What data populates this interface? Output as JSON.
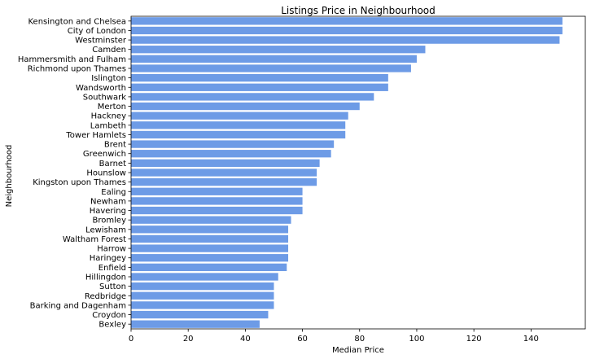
{
  "chart_data": {
    "type": "bar",
    "orientation": "horizontal",
    "title": "Listings Price in Neighbourhood",
    "xlabel": "Median Price",
    "ylabel": "Neighbourhood",
    "xlim": [
      0,
      159
    ],
    "xticks": [
      0,
      20,
      40,
      60,
      80,
      100,
      120,
      140
    ],
    "grid": false,
    "bar_color": "#6d9be6",
    "categories": [
      "Kensington and Chelsea",
      "City of London",
      "Westminster",
      "Camden",
      "Hammersmith and Fulham",
      "Richmond upon Thames",
      "Islington",
      "Wandsworth",
      "Southwark",
      "Merton",
      "Hackney",
      "Lambeth",
      "Tower Hamlets",
      "Brent",
      "Greenwich",
      "Barnet",
      "Hounslow",
      "Kingston upon Thames",
      "Ealing",
      "Newham",
      "Havering",
      "Bromley",
      "Lewisham",
      "Waltham Forest",
      "Harrow",
      "Haringey",
      "Enfield",
      "Hillingdon",
      "Sutton",
      "Redbridge",
      "Barking and Dagenham",
      "Croydon",
      "Bexley"
    ],
    "values": [
      151,
      151,
      150,
      103,
      100,
      98,
      90,
      90,
      85,
      80,
      76,
      75,
      75,
      71,
      70,
      66,
      65,
      65,
      60,
      60,
      60,
      56,
      55,
      55,
      55,
      55,
      54.5,
      51.5,
      50,
      50,
      50,
      48,
      45
    ]
  }
}
